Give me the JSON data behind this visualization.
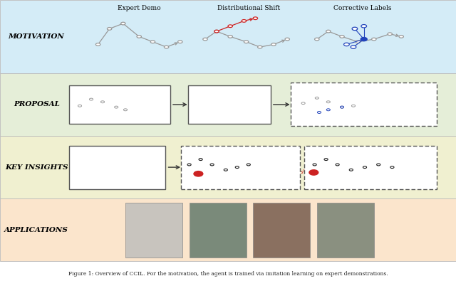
{
  "row_colors": {
    "motivation": "#d4ecf7",
    "proposal": "#e5eed8",
    "key_insights": "#f0f0d0",
    "applications": "#fbe5cc"
  },
  "row_labels": [
    "MOTIVATION",
    "PROPOSAL",
    "KEY INSIGHTS",
    "APPLICATIONS"
  ],
  "col_headers": [
    "Expert Demo",
    "Distributional Shift",
    "Corrective Labels"
  ],
  "caption": "Figure 1: Overview of CCIL. For the motivation, the agent is trained via imitation learning on expert demonstrations.",
  "box_edge": "#555555",
  "arrow_color": "#333333",
  "traj_gray": "#999999",
  "traj_red": "#cc2222",
  "traj_blue": "#2244bb"
}
